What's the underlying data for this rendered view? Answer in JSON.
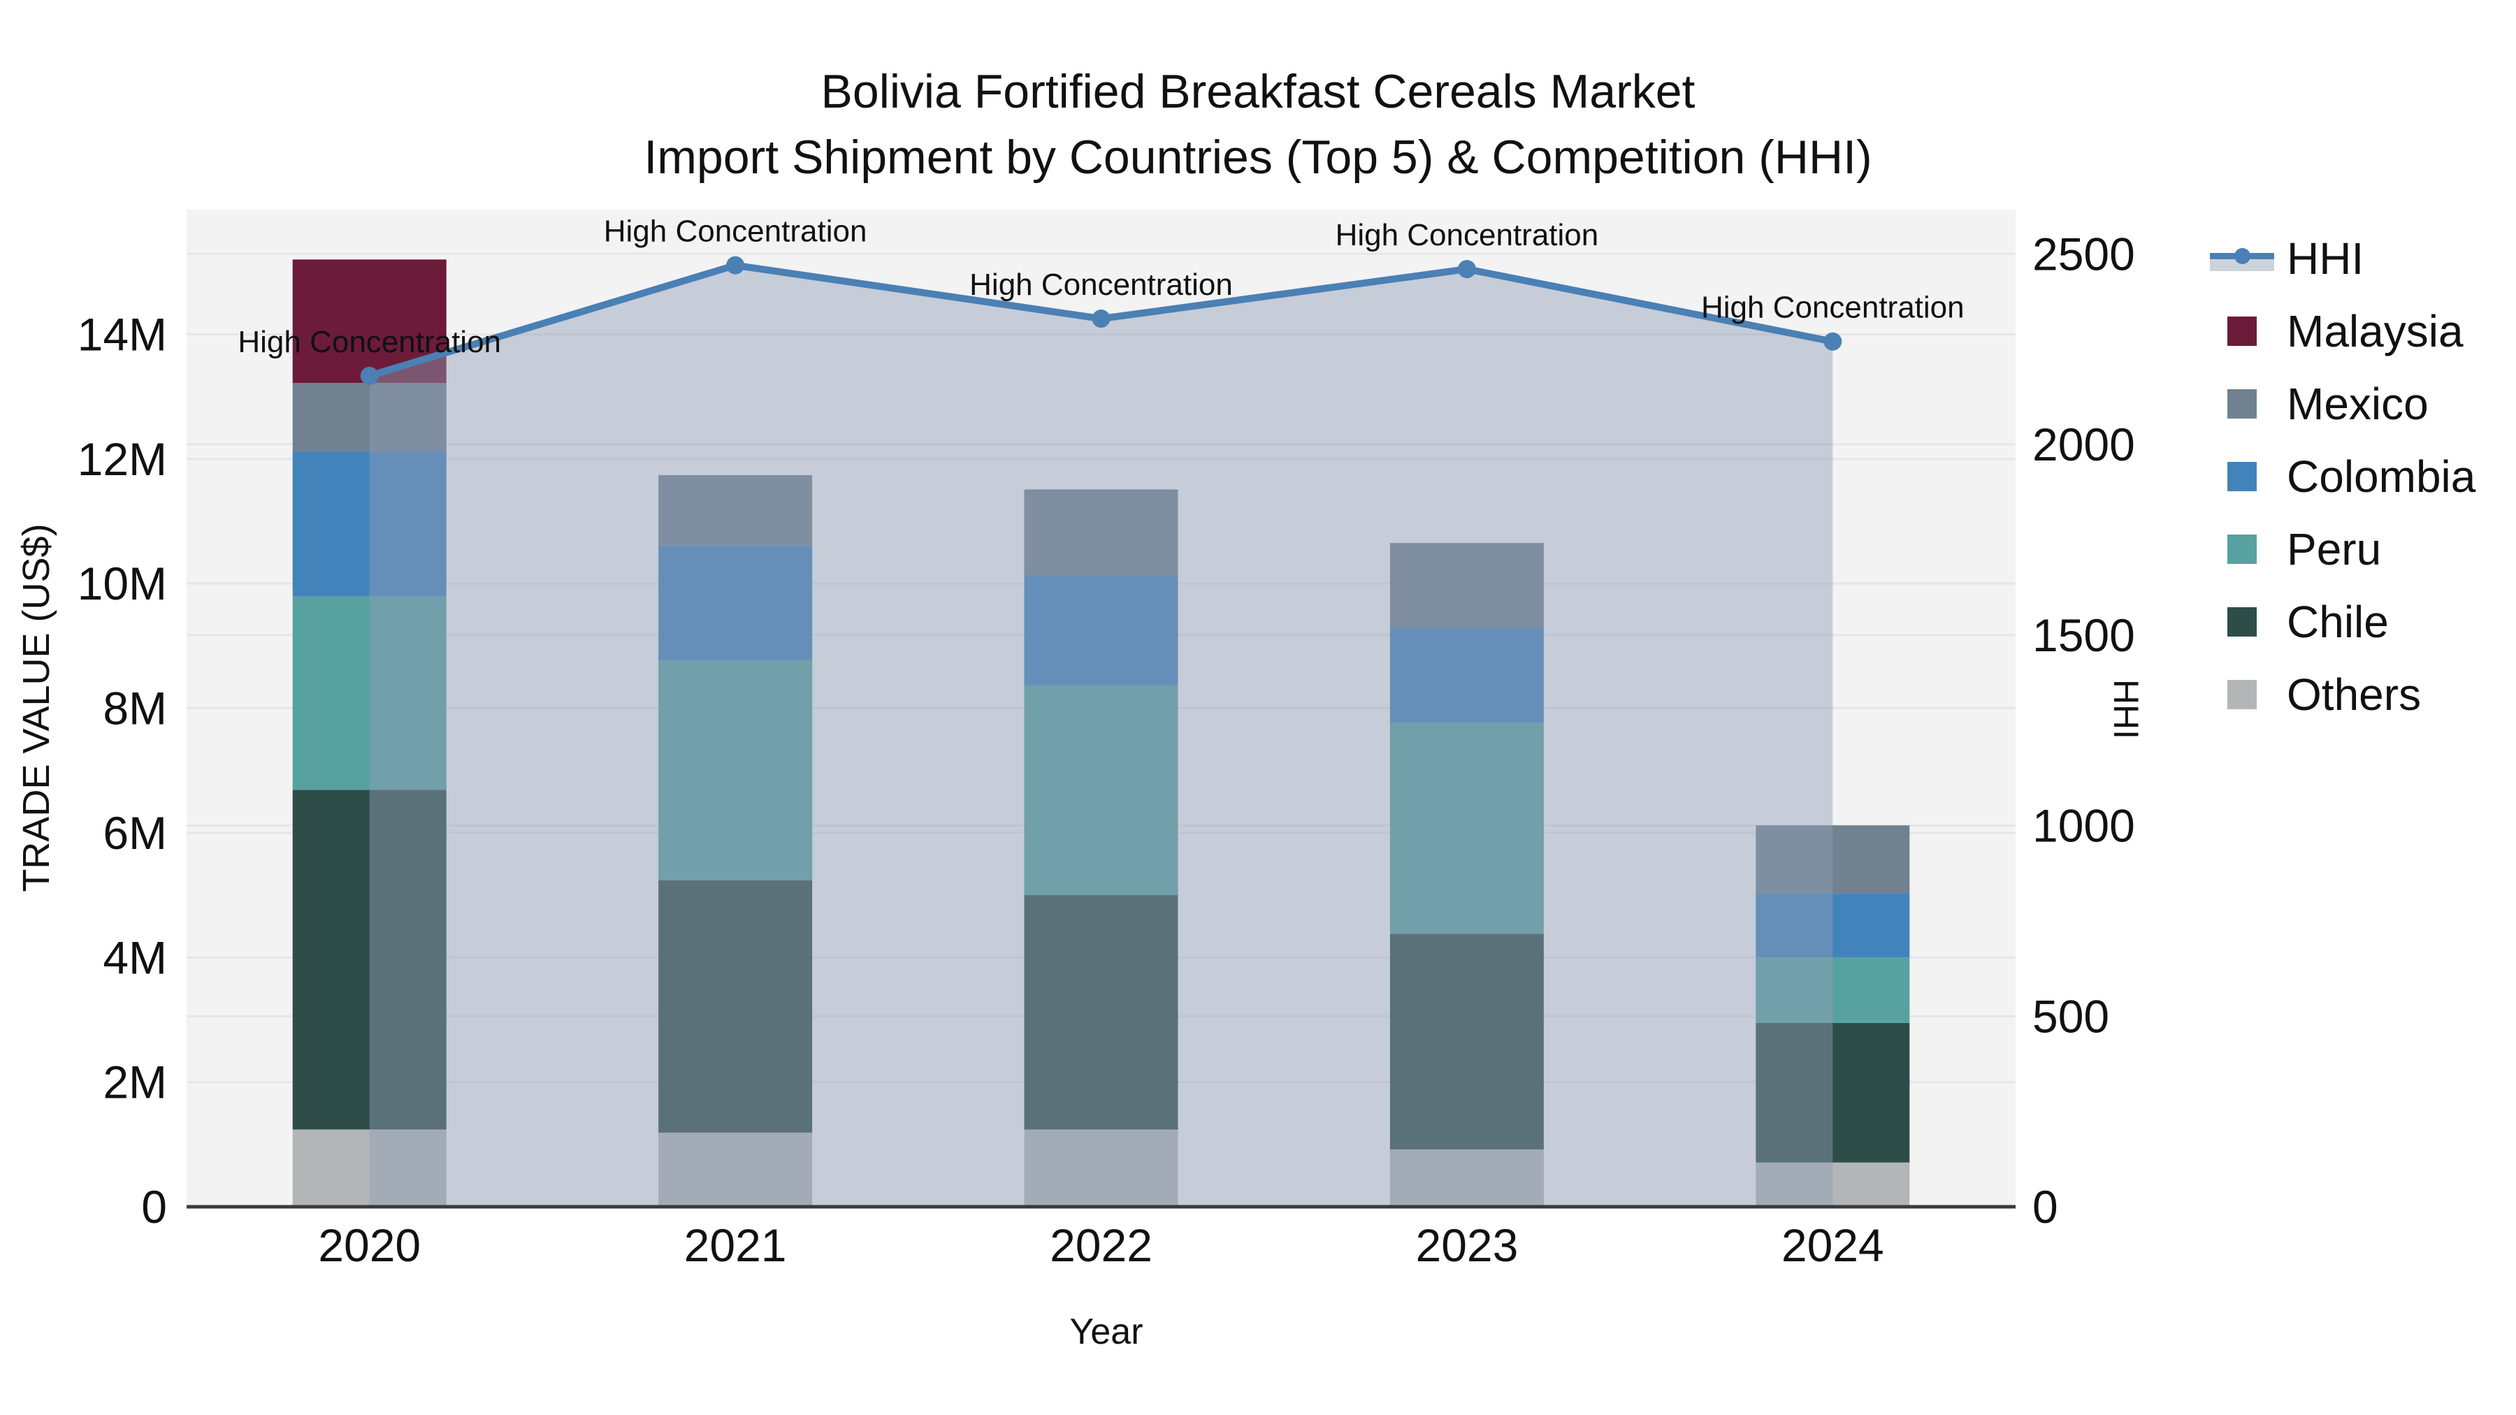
{
  "title": {
    "line1": "Bolivia Fortified Breakfast Cereals Market",
    "line2": "Import Shipment by Countries (Top 5) & Competition (HHI)"
  },
  "colors": {
    "plot_bg": "#f3f3f4",
    "grid": "#e4e6e8",
    "axis_line": "#3b3b3b",
    "text": "#111111",
    "hhi_line": "#4a80b4",
    "hhi_fill": "rgba(144,158,181,0.45)"
  },
  "legend": {
    "position": "right",
    "items": [
      {
        "label": "HHI",
        "type": "line",
        "color": "#4a80b4"
      },
      {
        "label": "Malaysia",
        "type": "swatch",
        "color": "#6c1b38"
      },
      {
        "label": "Mexico",
        "type": "swatch",
        "color": "#72818f"
      },
      {
        "label": "Colombia",
        "type": "swatch",
        "color": "#4383bb"
      },
      {
        "label": "Peru",
        "type": "swatch",
        "color": "#58a1a1"
      },
      {
        "label": "Chile",
        "type": "swatch",
        "color": "#2e4d48"
      },
      {
        "label": "Others",
        "type": "swatch",
        "color": "#b3b6b6"
      }
    ]
  },
  "chart_data": {
    "type": "bar+line",
    "title": "Bolivia Fortified Breakfast Cereals Market — Import Shipment by Countries (Top 5) & Competition (HHI)",
    "categories": [
      "2020",
      "2021",
      "2022",
      "2023",
      "2024"
    ],
    "xlabel": "Year",
    "ylabel": "TRADE VALUE (US$)",
    "y2label": "HHI",
    "bar_value_unit": "millions of US$",
    "stack_order": "bottom to top",
    "series": [
      {
        "name": "Others",
        "color": "#b3b6b6",
        "values": [
          1.24,
          1.19,
          1.24,
          0.92,
          0.71
        ]
      },
      {
        "name": "Chile",
        "color": "#2e4d48",
        "values": [
          5.45,
          4.05,
          3.76,
          3.46,
          2.24
        ]
      },
      {
        "name": "Peru",
        "color": "#58a1a1",
        "values": [
          3.1,
          3.53,
          3.37,
          3.39,
          1.05
        ]
      },
      {
        "name": "Colombia",
        "color": "#4383bb",
        "values": [
          2.33,
          1.84,
          1.77,
          1.52,
          1.03
        ]
      },
      {
        "name": "Mexico",
        "color": "#72818f",
        "values": [
          1.1,
          1.13,
          1.37,
          1.36,
          1.09
        ]
      },
      {
        "name": "Malaysia",
        "color": "#6c1b38",
        "values": [
          1.98,
          0,
          0,
          0,
          0
        ]
      }
    ],
    "bar_totals": [
      15.2,
      11.74,
      11.51,
      10.65,
      6.12
    ],
    "line": {
      "name": "HHI",
      "axis": "right",
      "color": "#4a80b4",
      "fill": "rgba(144,158,181,0.45)",
      "values": [
        2180,
        2470,
        2330,
        2460,
        2270
      ],
      "point_annotation": "High Concentration"
    },
    "ylim": [
      0,
      16
    ],
    "y2lim": [
      0,
      2616
    ],
    "grid": true,
    "legend_position": "right",
    "yticks": [
      {
        "v": 0,
        "label": "0"
      },
      {
        "v": 2,
        "label": "2M"
      },
      {
        "v": 4,
        "label": "4M"
      },
      {
        "v": 6,
        "label": "6M"
      },
      {
        "v": 8,
        "label": "8M"
      },
      {
        "v": 10,
        "label": "10M"
      },
      {
        "v": 12,
        "label": "12M"
      },
      {
        "v": 14,
        "label": "14M"
      }
    ],
    "y2ticks": [
      {
        "v": 0,
        "label": "0"
      },
      {
        "v": 500,
        "label": "500"
      },
      {
        "v": 1000,
        "label": "1000"
      },
      {
        "v": 1500,
        "label": "1500"
      },
      {
        "v": 2000,
        "label": "2000"
      },
      {
        "v": 2500,
        "label": "2500"
      }
    ]
  }
}
